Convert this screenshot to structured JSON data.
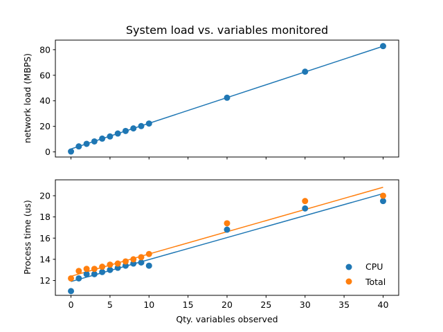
{
  "chart_data": [
    {
      "type": "scatter",
      "title": "System load vs. variables monitored",
      "xlabel": "",
      "ylabel": "network load (MBPS)",
      "xlim": [
        -2,
        42
      ],
      "ylim": [
        -4,
        87.5
      ],
      "yticks": [
        0,
        20,
        40,
        60,
        80
      ],
      "xticks": [
        0,
        5,
        10,
        15,
        20,
        25,
        30,
        35,
        40
      ],
      "show_xtick_labels": false,
      "grid": false,
      "series": [
        {
          "kind": "scatter",
          "color": "#1f77b4",
          "x": [
            0,
            1,
            2,
            3,
            4,
            5,
            6,
            7,
            8,
            9,
            10,
            20,
            30,
            40
          ],
          "y": [
            0.3,
            4.3,
            6.3,
            8.2,
            10.4,
            12.1,
            14.4,
            16.4,
            18.4,
            20.2,
            22.2,
            42.4,
            62.8,
            82.8
          ]
        },
        {
          "kind": "line",
          "color": "#1f77b4",
          "x": [
            0,
            40
          ],
          "y": [
            2.3,
            82.7
          ]
        }
      ]
    },
    {
      "type": "scatter",
      "title": "",
      "xlabel": "Qty. variables observed",
      "ylabel": "Process time (us)",
      "xlim": [
        -2,
        42
      ],
      "ylim": [
        10.6,
        21.5
      ],
      "yticks": [
        12,
        14,
        16,
        18,
        20
      ],
      "xticks": [
        0,
        5,
        10,
        15,
        20,
        25,
        30,
        35,
        40
      ],
      "grid": false,
      "legend_position": "lower-right",
      "series": [
        {
          "name": "CPU",
          "kind": "scatter",
          "color": "#1f77b4",
          "x": [
            0,
            1,
            2,
            3,
            4,
            5,
            6,
            7,
            8,
            9,
            10,
            20,
            30,
            40
          ],
          "y": [
            11.0,
            12.2,
            12.6,
            12.6,
            12.8,
            13.0,
            13.2,
            13.4,
            13.6,
            13.7,
            13.4,
            16.8,
            18.8,
            19.5
          ]
        },
        {
          "name": "Total",
          "kind": "scatter",
          "color": "#ff7f0e",
          "x": [
            0,
            1,
            2,
            3,
            4,
            5,
            6,
            7,
            8,
            9,
            10,
            20,
            30,
            40
          ],
          "y": [
            12.2,
            12.9,
            13.1,
            13.1,
            13.3,
            13.5,
            13.6,
            13.8,
            14.0,
            14.2,
            14.5,
            17.4,
            19.5,
            20.0
          ]
        },
        {
          "kind": "line",
          "color": "#1f77b4",
          "x": [
            0,
            40
          ],
          "y": [
            11.9,
            20.2
          ]
        },
        {
          "kind": "line",
          "color": "#ff7f0e",
          "x": [
            0,
            40
          ],
          "y": [
            12.4,
            20.8
          ]
        }
      ]
    }
  ]
}
